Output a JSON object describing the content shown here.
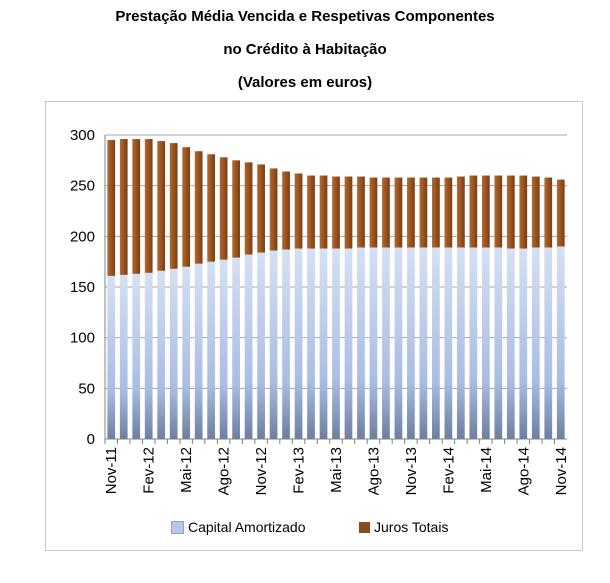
{
  "chart_data": {
    "type": "bar",
    "stacked": true,
    "title_lines": [
      "Prestação Média Vencida e Respetivas Componentes",
      "no Crédito à Habitação",
      "(Valores em euros)"
    ],
    "x": [
      "Nov-11",
      "Dez-11",
      "Jan-12",
      "Fev-12",
      "Mar-12",
      "Abr-12",
      "Mai-12",
      "Jun-12",
      "Jul-12",
      "Ago-12",
      "Set-12",
      "Out-12",
      "Nov-12",
      "Dez-12",
      "Jan-13",
      "Fev-13",
      "Mar-13",
      "Abr-13",
      "Mai-13",
      "Jun-13",
      "Jul-13",
      "Ago-13",
      "Set-13",
      "Out-13",
      "Nov-13",
      "Dez-13",
      "Jan-14",
      "Fev-14",
      "Mar-14",
      "Abr-14",
      "Mai-14",
      "Jun-14",
      "Jul-14",
      "Ago-14",
      "Set-14",
      "Out-14",
      "Nov-14"
    ],
    "xtick_labels": [
      "Nov-11",
      "Fev-12",
      "Mai-12",
      "Ago-12",
      "Nov-12",
      "Fev-13",
      "Mai-13",
      "Ago-13",
      "Nov-13",
      "Fev-14",
      "Mai-14",
      "Ago-14",
      "Nov-14"
    ],
    "xtick_every": 3,
    "yticks": [
      0,
      50,
      100,
      150,
      200,
      250,
      300
    ],
    "ylim": [
      0,
      300
    ],
    "grid": true,
    "legend_position": "bottom",
    "series": [
      {
        "name": "Capital Amortizado",
        "color": "#b7c7e6",
        "values": [
          161,
          162,
          163,
          164,
          166,
          168,
          170,
          173,
          175,
          177,
          179,
          182,
          184,
          186,
          187,
          188,
          188,
          188,
          188,
          188,
          189,
          189,
          189,
          189,
          189,
          189,
          189,
          189,
          189,
          189,
          189,
          189,
          188,
          188,
          189,
          189,
          190
        ]
      },
      {
        "name": "Juros Totais",
        "color": "#8a4b1e",
        "values": [
          134,
          134,
          133,
          132,
          128,
          124,
          118,
          111,
          106,
          101,
          96,
          91,
          87,
          81,
          77,
          74,
          72,
          72,
          71,
          71,
          70,
          69,
          69,
          69,
          69,
          69,
          69,
          69,
          70,
          71,
          71,
          71,
          72,
          72,
          70,
          69,
          66
        ]
      }
    ]
  }
}
